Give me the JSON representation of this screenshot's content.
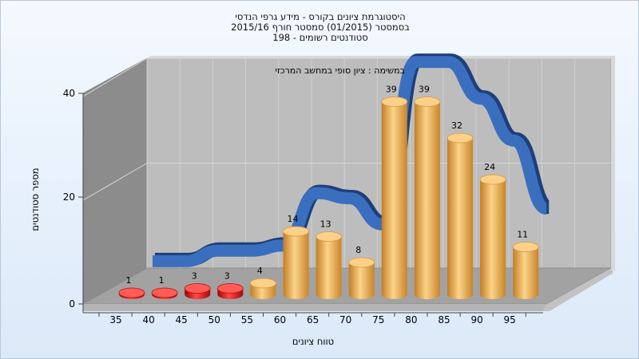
{
  "title_lines": [
    "היסטוגרמת ציונים בקורס - מידע גרפי הנדסי",
    "בסמסטר   (01/2015)  סמסטר חורף 2015/16",
    "סטודנטים רשומים - 198"
  ],
  "chart_data": {
    "type": "bar",
    "title": "היסטוגרמת ציונים בקורס - מידע גרפי הנדסי",
    "subtitle": "בסמסטר   (01/2015)  סמסטר חורף 2015/16 | סטודנטים רשומים - 198",
    "categories": [
      "35",
      "40",
      "45",
      "50",
      "55",
      "60",
      "65",
      "70",
      "75",
      "80",
      "85",
      "90",
      "95"
    ],
    "values": [
      1,
      1,
      3,
      3,
      4,
      14,
      13,
      8,
      39,
      39,
      32,
      24,
      11
    ],
    "xlabel": "טווח ציונים",
    "ylabel": "מספר סטודנטים",
    "ylim": [
      0,
      40
    ],
    "yticks": [
      0,
      20,
      40
    ],
    "annotation": "במשימה : ציון סופי במחשב המרכזי",
    "grid": true,
    "failing_color": "#e0141c",
    "passing_color": "#e8a444",
    "curve_color": "#3a6fc0"
  }
}
